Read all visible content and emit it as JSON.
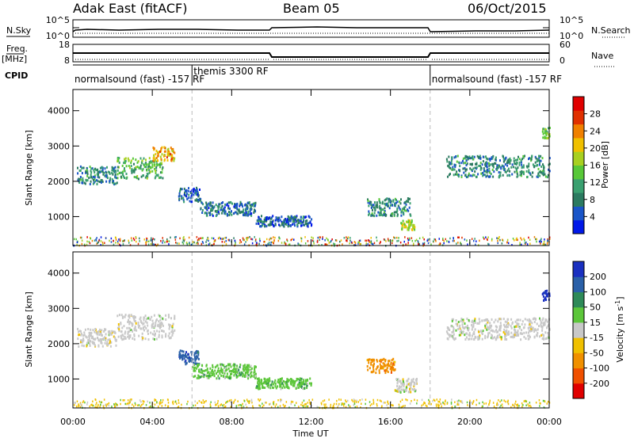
{
  "header": {
    "radar": "Adak East (fitACF)",
    "beam": "Beam 05",
    "date": "06/Oct/2015"
  },
  "top_panels": {
    "nsky_label": "N.Sky",
    "nsearch_label": "N.Search",
    "freq_label_line1": "Freq.",
    "freq_label_line2": "[MHz]",
    "nave_label": "Nave",
    "cpid_label": "CPID",
    "noise_left_ticks": [
      "10^5",
      "10^0"
    ],
    "noise_right_ticks": [
      "10^5",
      "10^0"
    ],
    "freq_left_ticks": [
      "18",
      "8"
    ],
    "nave_right_ticks": [
      "60",
      "0"
    ]
  },
  "cpid_modes": [
    {
      "label": "normalsound (fast) -157 RF",
      "start_hour": 0,
      "end_hour": 6
    },
    {
      "label": "themis 3300 RF",
      "start_hour": 6,
      "end_hour": 18
    },
    {
      "label": "normalsound (fast) -157 RF",
      "start_hour": 18,
      "end_hour": 24
    }
  ],
  "x_axis": {
    "title": "Time UT",
    "ticks": [
      "00:00",
      "04:00",
      "08:00",
      "12:00",
      "16:00",
      "20:00",
      "00:00"
    ]
  },
  "y_axis": {
    "title": "Slant Range [km]",
    "ticks": [
      "1000",
      "2000",
      "3000",
      "4000"
    ]
  },
  "power_colorbar": {
    "title": "Power [dB]",
    "ticks": [
      "4",
      "8",
      "12",
      "16",
      "20",
      "24",
      "28"
    ],
    "colors": [
      "#0018e8",
      "#1a55c8",
      "#2b7a60",
      "#3aa070",
      "#58c838",
      "#a8d020",
      "#f0c000",
      "#f08000",
      "#e03000",
      "#e00000"
    ]
  },
  "velocity_colorbar": {
    "title_main": "Velocity [m s",
    "title_sup": "-1",
    "title_end": "]",
    "ticks": [
      "200",
      "100",
      "50",
      "15",
      "-15",
      "-50",
      "-100",
      "-200"
    ],
    "colors": [
      "#1a30c0",
      "#2a60a8",
      "#2e8a58",
      "#5cc63a",
      "#c8c8c8",
      "#f0c000",
      "#f09000",
      "#f05000",
      "#e00000"
    ]
  },
  "chart_data": [
    {
      "type": "heatmap",
      "name": "power",
      "x_range_hours": [
        0,
        24
      ],
      "y_range_km": [
        180,
        4600
      ],
      "echo_regions": [
        {
          "t_start": 0.2,
          "t_end": 2.2,
          "r_center": 2200,
          "r_half": 250,
          "level": 0.3
        },
        {
          "t_start": 2.2,
          "t_end": 4.5,
          "r_center": 2400,
          "r_half": 300,
          "level": 0.45
        },
        {
          "t_start": 4.0,
          "t_end": 5.1,
          "r_center": 2800,
          "r_half": 200,
          "level": 0.75
        },
        {
          "t_start": 5.3,
          "t_end": 6.4,
          "r_center": 1650,
          "r_half": 200,
          "level": 0.2
        },
        {
          "t_start": 6.4,
          "t_end": 9.2,
          "r_center": 1250,
          "r_half": 200,
          "level": 0.25
        },
        {
          "t_start": 9.2,
          "t_end": 12.0,
          "r_center": 900,
          "r_half": 150,
          "level": 0.2
        },
        {
          "t_start": 14.8,
          "t_end": 17.0,
          "r_center": 1300,
          "r_half": 250,
          "level": 0.3
        },
        {
          "t_start": 16.5,
          "t_end": 17.2,
          "r_center": 800,
          "r_half": 150,
          "level": 0.6
        },
        {
          "t_start": 18.8,
          "t_end": 24.0,
          "r_center": 2450,
          "r_half": 300,
          "level": 0.3
        },
        {
          "t_start": 23.6,
          "t_end": 24.0,
          "r_center": 3400,
          "r_half": 150,
          "level": 0.5
        }
      ],
      "ground_band_km": [
        200,
        450
      ]
    },
    {
      "type": "heatmap",
      "name": "velocity",
      "x_range_hours": [
        0,
        24
      ],
      "y_range_km": [
        180,
        4600
      ],
      "echo_regions": [
        {
          "t_start": 0.2,
          "t_end": 2.2,
          "r_center": 2200,
          "r_half": 250,
          "velocity": 0
        },
        {
          "t_start": 2.2,
          "t_end": 5.1,
          "r_center": 2500,
          "r_half": 350,
          "velocity": 0
        },
        {
          "t_start": 5.3,
          "t_end": 6.4,
          "r_center": 1650,
          "r_half": 200,
          "velocity": 130
        },
        {
          "t_start": 6.0,
          "t_end": 9.2,
          "r_center": 1250,
          "r_half": 200,
          "velocity": 30
        },
        {
          "t_start": 9.2,
          "t_end": 12.0,
          "r_center": 900,
          "r_half": 150,
          "velocity": 25
        },
        {
          "t_start": 14.8,
          "t_end": 16.2,
          "r_center": 1400,
          "r_half": 200,
          "velocity": -50
        },
        {
          "t_start": 16.2,
          "t_end": 17.3,
          "r_center": 850,
          "r_half": 200,
          "velocity": 0
        },
        {
          "t_start": 18.8,
          "t_end": 24.0,
          "r_center": 2450,
          "r_half": 300,
          "velocity": 0
        },
        {
          "t_start": 23.6,
          "t_end": 24.0,
          "r_center": 3400,
          "r_half": 150,
          "velocity": 200
        }
      ],
      "ground_band_km": [
        200,
        450
      ]
    }
  ]
}
